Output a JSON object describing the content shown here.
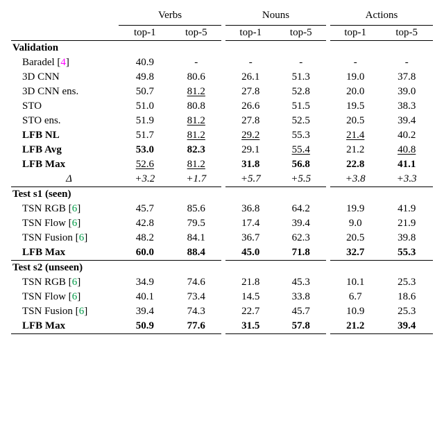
{
  "headers": {
    "groups": [
      "Verbs",
      "Nouns",
      "Actions"
    ],
    "sub": [
      "top-1",
      "top-5",
      "top-1",
      "top-5",
      "top-1",
      "top-5"
    ]
  },
  "sections": [
    {
      "title": "Validation",
      "rows": [
        {
          "label": "Baradel [",
          "cite": "4",
          "label2": "]",
          "vals": [
            "40.9",
            "-",
            "-",
            "-",
            "-",
            "-"
          ],
          "fmt": [
            "",
            "",
            "",
            "",
            "",
            ""
          ]
        },
        {
          "label": "3D CNN",
          "vals": [
            "49.8",
            "80.6",
            "26.1",
            "51.3",
            "19.0",
            "37.8"
          ],
          "fmt": [
            "",
            "",
            "",
            "",
            "",
            ""
          ]
        },
        {
          "label": "3D CNN ens.",
          "vals": [
            "50.7",
            "81.2",
            "27.8",
            "52.8",
            "20.0",
            "39.0"
          ],
          "fmt": [
            "",
            "underline",
            "",
            "",
            "",
            ""
          ]
        },
        {
          "label": "STO",
          "vals": [
            "51.0",
            "80.8",
            "26.6",
            "51.5",
            "19.5",
            "38.3"
          ],
          "fmt": [
            "",
            "",
            "",
            "",
            "",
            ""
          ]
        },
        {
          "label": "STO ens.",
          "vals": [
            "51.9",
            "81.2",
            "27.8",
            "52.5",
            "20.5",
            "39.4"
          ],
          "fmt": [
            "",
            "underline",
            "",
            "",
            "",
            ""
          ]
        },
        {
          "label": "LFB NL",
          "labelClass": "bold",
          "vals": [
            "51.7",
            "81.2",
            "29.2",
            "55.3",
            "21.4",
            "40.2"
          ],
          "fmt": [
            "",
            "underline",
            "underline",
            "",
            "underline",
            ""
          ]
        },
        {
          "label": "LFB Avg",
          "labelClass": "bold",
          "vals": [
            "53.0",
            "82.3",
            "29.1",
            "55.4",
            "21.2",
            "40.8"
          ],
          "fmt": [
            "bold",
            "bold",
            "",
            "underline",
            "",
            "underline"
          ]
        },
        {
          "label": "LFB Max",
          "labelClass": "bold",
          "vals": [
            "52.6",
            "81.2",
            "31.8",
            "56.8",
            "22.8",
            "41.1"
          ],
          "fmt": [
            "underline",
            "underline",
            "bold",
            "bold",
            "bold",
            "bold"
          ]
        },
        {
          "label": "Δ",
          "labelClass": "italic",
          "labelCenter": true,
          "vals": [
            "+3.2",
            "+1.7",
            "+5.7",
            "+5.5",
            "+3.8",
            "+3.3"
          ],
          "fmt": [
            "italic",
            "italic",
            "italic",
            "italic",
            "italic",
            "italic"
          ]
        }
      ]
    },
    {
      "title": "Test s1 (seen)",
      "rows": [
        {
          "label": "TSN RGB [",
          "cite": "6",
          "label2": "]",
          "vals": [
            "45.7",
            "85.6",
            "36.8",
            "64.2",
            "19.9",
            "41.9"
          ],
          "fmt": [
            "",
            "",
            "",
            "",
            "",
            ""
          ]
        },
        {
          "label": "TSN Flow [",
          "cite": "6",
          "label2": "]",
          "vals": [
            "42.8",
            "79.5",
            "17.4",
            "39.4",
            "9.0",
            "21.9"
          ],
          "fmt": [
            "",
            "",
            "",
            "",
            "",
            ""
          ]
        },
        {
          "label": "TSN Fusion [",
          "cite": "6",
          "label2": "]",
          "vals": [
            "48.2",
            "84.1",
            "36.7",
            "62.3",
            "20.5",
            "39.8"
          ],
          "fmt": [
            "",
            "",
            "",
            "",
            "",
            ""
          ]
        },
        {
          "label": "LFB Max",
          "labelClass": "bold",
          "vals": [
            "60.0",
            "88.4",
            "45.0",
            "71.8",
            "32.7",
            "55.3"
          ],
          "fmt": [
            "bold",
            "bold",
            "bold",
            "bold",
            "bold",
            "bold"
          ]
        }
      ]
    },
    {
      "title": "Test s2 (unseen)",
      "rows": [
        {
          "label": "TSN RGB [",
          "cite": "6",
          "label2": "]",
          "vals": [
            "34.9",
            "74.6",
            "21.8",
            "45.3",
            "10.1",
            "25.3"
          ],
          "fmt": [
            "",
            "",
            "",
            "",
            "",
            ""
          ]
        },
        {
          "label": "TSN Flow [",
          "cite": "6",
          "label2": "]",
          "vals": [
            "40.1",
            "73.4",
            "14.5",
            "33.8",
            "6.7",
            "18.6"
          ],
          "fmt": [
            "",
            "",
            "",
            "",
            "",
            ""
          ]
        },
        {
          "label": "TSN Fusion [",
          "cite": "6",
          "label2": "]",
          "vals": [
            "39.4",
            "74.3",
            "22.7",
            "45.7",
            "10.9",
            "25.3"
          ],
          "fmt": [
            "",
            "",
            "",
            "",
            "",
            ""
          ]
        },
        {
          "label": "LFB Max",
          "labelClass": "bold",
          "vals": [
            "50.9",
            "77.6",
            "31.5",
            "57.8",
            "21.2",
            "39.4"
          ],
          "fmt": [
            "bold",
            "bold",
            "bold",
            "bold",
            "bold",
            "bold"
          ]
        }
      ]
    }
  ]
}
